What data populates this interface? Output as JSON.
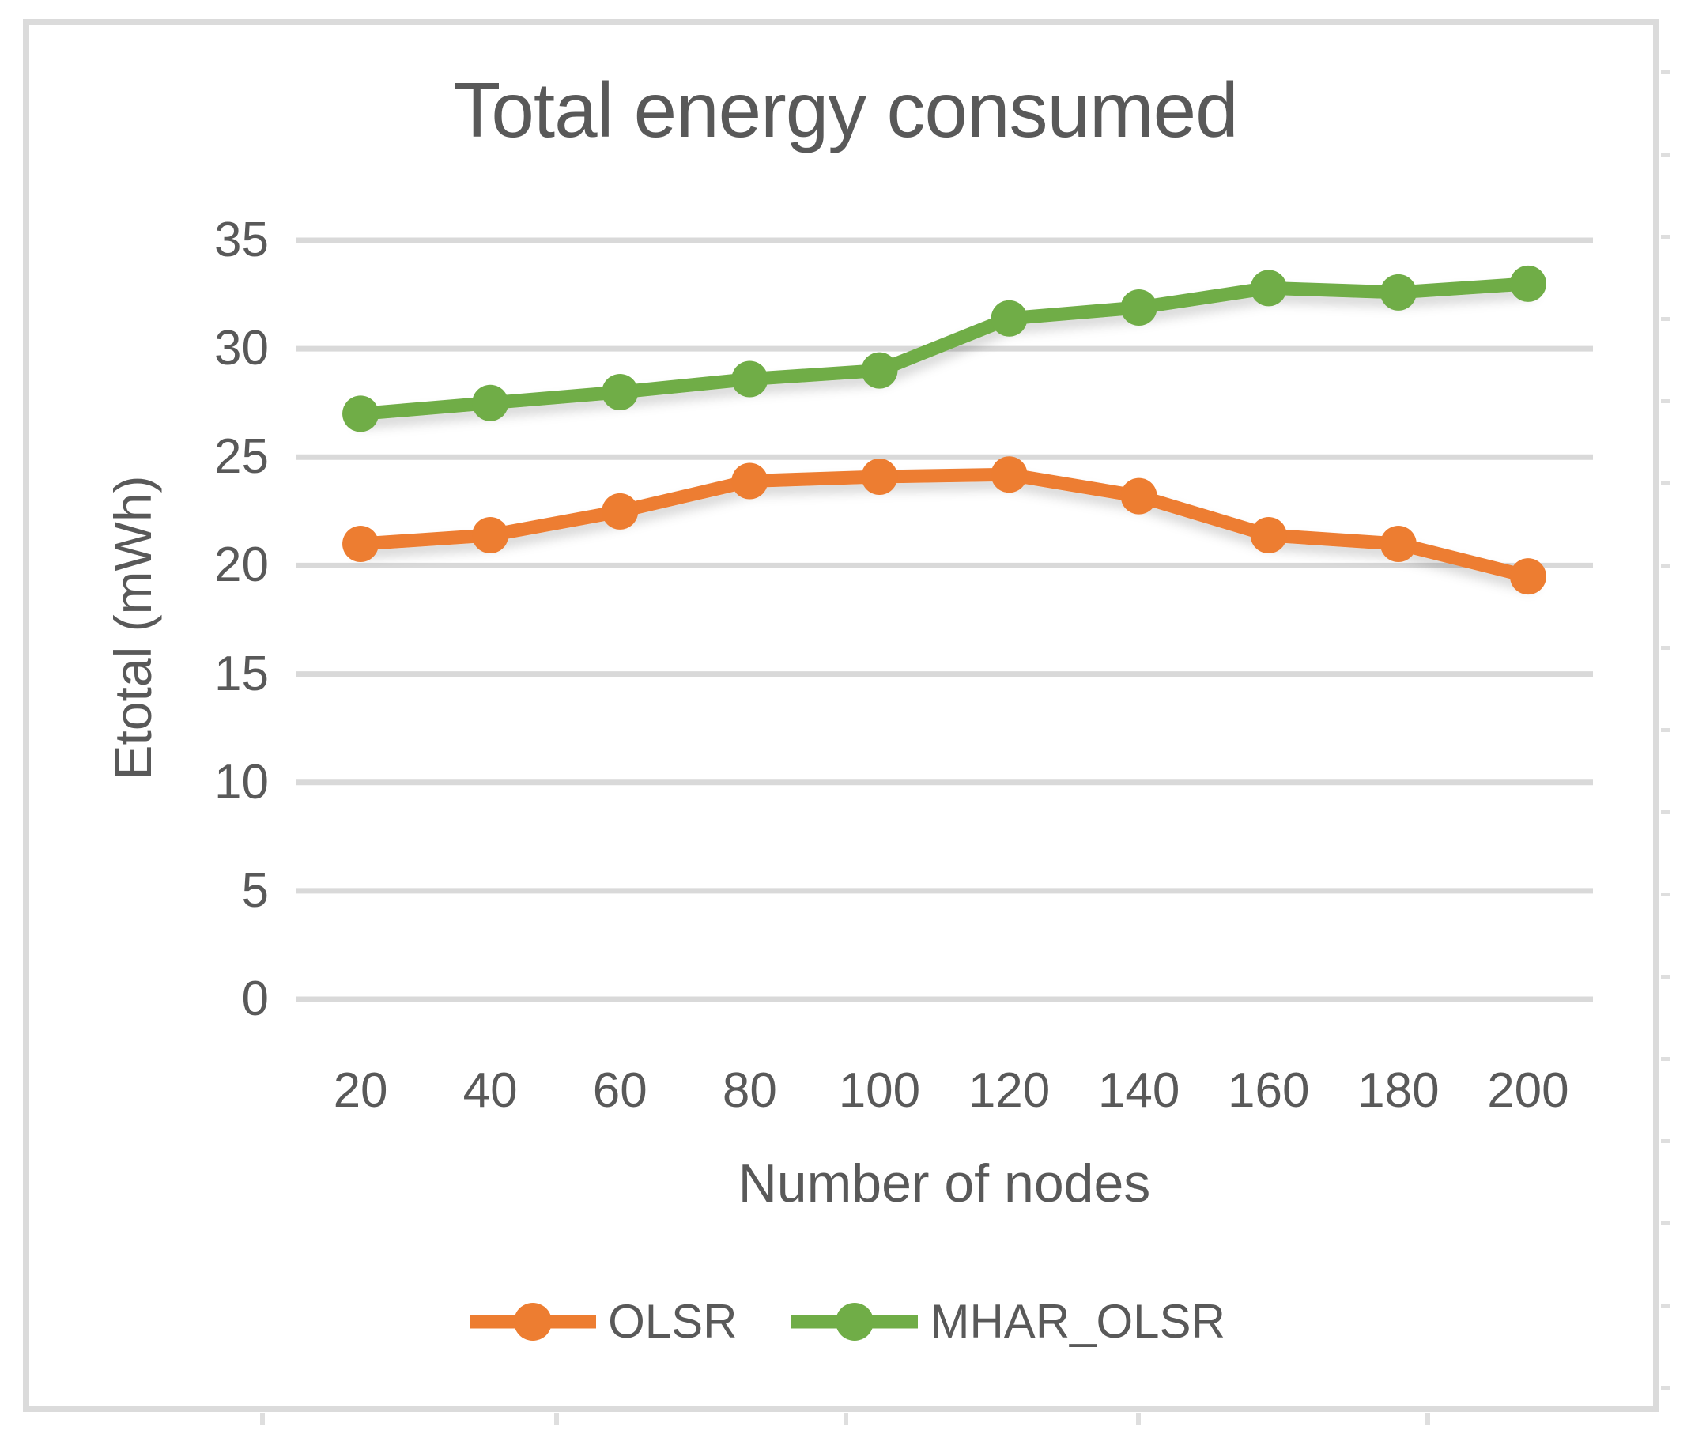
{
  "chart_data": {
    "type": "line",
    "title": "Total energy consumed",
    "xlabel": "Number of nodes",
    "ylabel": "Etotal (mWh)",
    "categories": [
      "20",
      "40",
      "60",
      "80",
      "100",
      "120",
      "140",
      "160",
      "180",
      "200"
    ],
    "series": [
      {
        "name": "OLSR",
        "color": "#ED7D31",
        "values": [
          21.0,
          21.4,
          22.5,
          23.9,
          24.1,
          24.2,
          23.2,
          21.4,
          21.0,
          19.5
        ]
      },
      {
        "name": "MHAR_OLSR",
        "color": "#70AD47",
        "values": [
          27.0,
          27.5,
          28.0,
          28.6,
          29.0,
          31.4,
          31.9,
          32.8,
          32.6,
          33.0
        ]
      }
    ],
    "ylim": [
      0,
      35
    ],
    "yticks": [
      0,
      5,
      10,
      15,
      20,
      25,
      30,
      35
    ],
    "grid": "horizontal",
    "gridline_color": "#D9D9D9",
    "text_color": "#595959",
    "frame_color": "#DBDBDB",
    "legend_position": "bottom",
    "marker": "circle"
  }
}
